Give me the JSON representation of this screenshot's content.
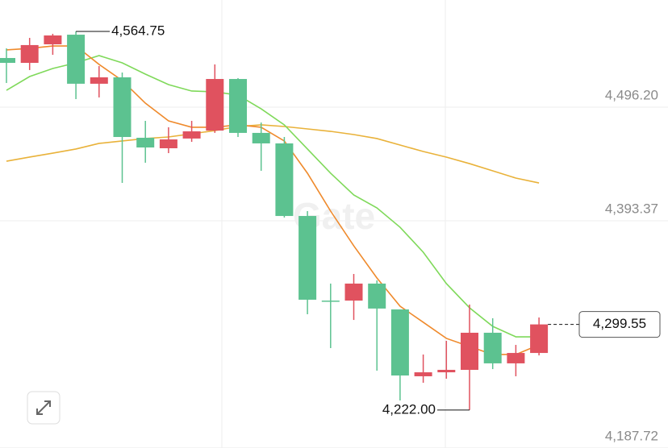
{
  "chart_data": {
    "type": "candlestick",
    "watermark": "Gate",
    "open": [
      4540.7,
      4536.3,
      4553.1,
      4561.8,
      4517.4,
      4523.2,
      4468.5,
      4459.0,
      4467.8,
      4475.0,
      4521.7,
      4472.9,
      4463.4,
      4397.7,
      4321.1,
      4321.1,
      4336.5,
      4313.1,
      4252.6,
      4256.2,
      4258.4,
      4292.0,
      4264.3,
      4273.7
    ],
    "high": [
      4549.4,
      4558.9,
      4562.6,
      4564.75,
      4533.4,
      4527.6,
      4483.8,
      4478.0,
      4483.8,
      4534.9,
      4522.5,
      4482.3,
      4469.2,
      4402.1,
      4336.5,
      4345.2,
      4339.4,
      4313.1,
      4272.3,
      4284.7,
      4317.5,
      4305.1,
      4281.0,
      4305.8
    ],
    "low": [
      4518.1,
      4529.8,
      4543.6,
      4503.5,
      4505.0,
      4427.6,
      4445.9,
      4454.6,
      4464.8,
      4472.9,
      4469.2,
      4438.6,
      4396.3,
      4308.7,
      4278.1,
      4303.6,
      4257.7,
      4230.7,
      4246.7,
      4250.4,
      4222.0,
      4259.1,
      4252.6,
      4271.5
    ],
    "close": [
      4536.3,
      4552.4,
      4561.1,
      4517.4,
      4523.2,
      4469.2,
      4459.7,
      4467.0,
      4474.3,
      4521.7,
      4472.9,
      4463.4,
      4397.7,
      4321.9,
      4320.4,
      4336.5,
      4313.9,
      4253.3,
      4256.2,
      4258.4,
      4292.0,
      4264.3,
      4273.7,
      4299.55
    ],
    "up_color": "#e0525f",
    "down_color": "#5cc290",
    "series": [
      {
        "color": "#e9b23a",
        "values": [
          4447.3,
          4451.0,
          4454.6,
          4458.3,
          4463.4,
          4465.6,
          4467.8,
          4469.2,
          4472.1,
          4475.0,
          4478.7,
          4480.2,
          4478.7,
          4476.5,
          4474.3,
          4471.4,
          4467.8,
          4461.9,
          4456.1,
          4451.0,
          4445.1,
          4438.6,
          4432.0,
          4427.6
        ]
      },
      {
        "color": "#7fd95a",
        "values": [
          4511.5,
          4523.9,
          4531.2,
          4536.3,
          4542.9,
          4536.3,
          4526.1,
          4516.6,
          4510.8,
          4510.1,
          4507.1,
          4494.7,
          4480.2,
          4458.3,
          4436.4,
          4416.7,
          4405.0,
          4387.5,
          4364.9,
          4336.5,
          4314.6,
          4297.8,
          4288.3,
          4288.3
        ]
      },
      {
        "color": "#ef8a2c",
        "values": [
          4548.0,
          4549.4,
          4551.6,
          4551.6,
          4534.9,
          4520.3,
          4499.8,
          4483.8,
          4478.0,
          4478.0,
          4480.2,
          4478.0,
          4465.6,
          4436.4,
          4402.1,
          4370.7,
          4341.6,
          4316.0,
          4301.5,
          4286.9,
          4279.6,
          4272.3,
          4272.3,
          4281.0
        ]
      }
    ],
    "ylim": [
      4187.67,
      4593.2
    ],
    "yticks": [
      {
        "value": 4496.2,
        "label": "4,496.20"
      },
      {
        "value": 4393.37,
        "label": "4,393.37"
      },
      {
        "value": 4187.72,
        "label": "4,187.72"
      }
    ],
    "grid": true,
    "annotations": [
      {
        "value": 4564.75,
        "label": "4,564.75"
      },
      {
        "value": 4222.0,
        "label": "4,222.00"
      },
      {
        "value": 4299.55,
        "label": "4,299.55"
      }
    ]
  }
}
